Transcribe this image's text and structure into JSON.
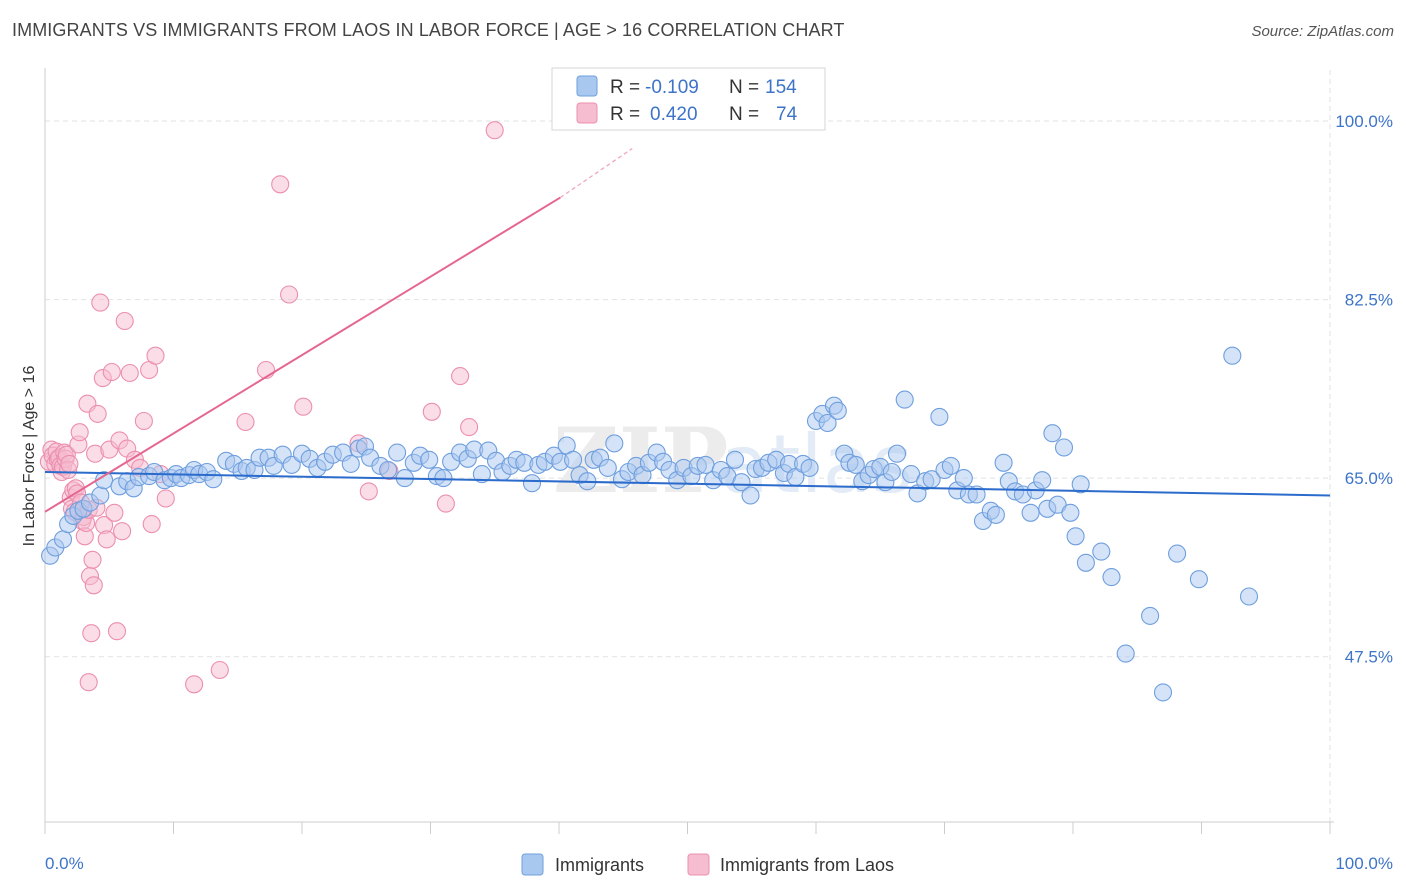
{
  "title": "IMMIGRANTS VS IMMIGRANTS FROM LAOS IN LABOR FORCE | AGE > 16 CORRELATION CHART",
  "source": "Source: ZipAtlas.com",
  "watermark": "ZIPatlas",
  "colors": {
    "blue_fill": "#a9c8ef",
    "blue_stroke": "#6f9fde",
    "blue_line": "#2b6bcc",
    "pink_fill": "#f6bcd0",
    "pink_stroke": "#ec8fae",
    "pink_line": "#e5678f",
    "tick_text": "#3d74c9",
    "grid": "#e2e2e2"
  },
  "legend": {
    "rows": [
      {
        "r_label": "R =",
        "r_value": "-0.109",
        "n_label": "N =",
        "n_value": "154"
      },
      {
        "r_label": "R =",
        "r_value": "0.420",
        "n_label": "N =",
        "n_value": "74"
      }
    ]
  },
  "chart_data": {
    "type": "scatter",
    "title": "IMMIGRANTS VS IMMIGRANTS FROM LAOS IN LABOR FORCE | AGE > 16 CORRELATION CHART",
    "xlabel": "",
    "ylabel": "In Labor Force | Age > 16",
    "xlim": [
      0,
      100
    ],
    "ylim": [
      31.3,
      105.0
    ],
    "x_tick_labels": [
      "0.0%",
      "100.0%"
    ],
    "y_ticks": [
      47.5,
      65.0,
      82.5,
      100.0
    ],
    "y_tick_labels": [
      "47.5%",
      "65.0%",
      "82.5%",
      "100.0%"
    ],
    "grid": true,
    "legend_position": "top-center",
    "series": [
      {
        "name": "Immigrants",
        "color": "#a9c8ef",
        "r": -0.109,
        "n": 154,
        "trend": {
          "x": [
            0,
            100
          ],
          "y": [
            65.6,
            63.3
          ]
        },
        "points": [
          [
            0.4,
            57.4
          ],
          [
            0.8,
            58.2
          ],
          [
            1.4,
            59.0
          ],
          [
            1.8,
            60.5
          ],
          [
            2.2,
            61.3
          ],
          [
            2.6,
            61.8
          ],
          [
            3.0,
            62.0
          ],
          [
            3.5,
            62.6
          ],
          [
            4.3,
            63.3
          ],
          [
            4.6,
            64.8
          ],
          [
            5.8,
            64.2
          ],
          [
            6.4,
            64.7
          ],
          [
            6.9,
            64.0
          ],
          [
            7.3,
            65.1
          ],
          [
            8.1,
            65.2
          ],
          [
            8.5,
            65.6
          ],
          [
            9.3,
            64.8
          ],
          [
            9.8,
            65.0
          ],
          [
            10.2,
            65.4
          ],
          [
            10.6,
            65.0
          ],
          [
            11.2,
            65.3
          ],
          [
            11.6,
            65.8
          ],
          [
            12.0,
            65.4
          ],
          [
            12.6,
            65.6
          ],
          [
            13.1,
            64.9
          ],
          [
            14.1,
            66.7
          ],
          [
            14.7,
            66.4
          ],
          [
            15.3,
            65.7
          ],
          [
            15.7,
            66.0
          ],
          [
            16.3,
            65.8
          ],
          [
            16.7,
            67.0
          ],
          [
            17.4,
            67.0
          ],
          [
            17.8,
            66.2
          ],
          [
            18.5,
            67.3
          ],
          [
            19.2,
            66.3
          ],
          [
            20.0,
            67.4
          ],
          [
            20.6,
            66.9
          ],
          [
            21.2,
            66.0
          ],
          [
            21.8,
            66.6
          ],
          [
            22.4,
            67.3
          ],
          [
            23.2,
            67.5
          ],
          [
            23.8,
            66.4
          ],
          [
            24.4,
            67.9
          ],
          [
            24.9,
            68.1
          ],
          [
            25.3,
            67.0
          ],
          [
            26.1,
            66.2
          ],
          [
            26.7,
            65.8
          ],
          [
            27.4,
            67.5
          ],
          [
            28.0,
            65.0
          ],
          [
            28.7,
            66.5
          ],
          [
            29.2,
            67.2
          ],
          [
            29.9,
            66.8
          ],
          [
            30.5,
            65.2
          ],
          [
            31.0,
            65.0
          ],
          [
            31.6,
            66.6
          ],
          [
            32.3,
            67.5
          ],
          [
            32.9,
            66.9
          ],
          [
            33.4,
            67.8
          ],
          [
            34.0,
            65.4
          ],
          [
            34.5,
            67.7
          ],
          [
            35.1,
            66.7
          ],
          [
            35.6,
            65.6
          ],
          [
            36.2,
            66.2
          ],
          [
            36.7,
            66.8
          ],
          [
            37.3,
            66.5
          ],
          [
            37.9,
            64.5
          ],
          [
            38.4,
            66.3
          ],
          [
            38.9,
            66.6
          ],
          [
            39.6,
            67.2
          ],
          [
            40.1,
            66.6
          ],
          [
            40.6,
            68.2
          ],
          [
            41.1,
            66.8
          ],
          [
            41.6,
            65.3
          ],
          [
            42.2,
            64.7
          ],
          [
            42.7,
            66.8
          ],
          [
            43.2,
            67.0
          ],
          [
            43.8,
            66.0
          ],
          [
            44.3,
            68.4
          ],
          [
            44.9,
            64.9
          ],
          [
            45.4,
            65.6
          ],
          [
            46.0,
            66.2
          ],
          [
            46.5,
            65.3
          ],
          [
            47.0,
            66.5
          ],
          [
            47.6,
            67.5
          ],
          [
            48.1,
            66.6
          ],
          [
            48.6,
            65.8
          ],
          [
            49.2,
            64.8
          ],
          [
            49.7,
            66.0
          ],
          [
            50.3,
            65.2
          ],
          [
            50.8,
            66.2
          ],
          [
            51.4,
            66.3
          ],
          [
            52.0,
            64.8
          ],
          [
            52.6,
            65.8
          ],
          [
            53.1,
            65.2
          ],
          [
            53.7,
            66.8
          ],
          [
            54.2,
            64.6
          ],
          [
            54.9,
            63.3
          ],
          [
            55.3,
            65.9
          ],
          [
            55.8,
            66.0
          ],
          [
            56.3,
            66.5
          ],
          [
            56.9,
            66.8
          ],
          [
            57.5,
            65.5
          ],
          [
            57.9,
            66.4
          ],
          [
            58.4,
            65.1
          ],
          [
            59.0,
            66.4
          ],
          [
            59.5,
            66.0
          ],
          [
            60.0,
            70.6
          ],
          [
            60.5,
            71.3
          ],
          [
            60.9,
            70.4
          ],
          [
            61.4,
            72.1
          ],
          [
            61.7,
            71.6
          ],
          [
            62.2,
            67.4
          ],
          [
            62.6,
            66.5
          ],
          [
            63.1,
            66.3
          ],
          [
            63.6,
            64.7
          ],
          [
            64.1,
            65.3
          ],
          [
            64.5,
            65.9
          ],
          [
            65.0,
            66.1
          ],
          [
            65.4,
            64.6
          ],
          [
            65.9,
            65.6
          ],
          [
            66.3,
            67.4
          ],
          [
            66.9,
            72.7
          ],
          [
            67.4,
            65.4
          ],
          [
            67.9,
            63.5
          ],
          [
            68.5,
            64.7
          ],
          [
            69.0,
            64.9
          ],
          [
            69.6,
            71.0
          ],
          [
            70.0,
            65.8
          ],
          [
            70.5,
            66.2
          ],
          [
            71.0,
            63.8
          ],
          [
            71.5,
            65.0
          ],
          [
            71.9,
            63.4
          ],
          [
            72.5,
            63.4
          ],
          [
            73.0,
            60.8
          ],
          [
            73.6,
            61.8
          ],
          [
            74.0,
            61.4
          ],
          [
            74.6,
            66.5
          ],
          [
            75.0,
            64.7
          ],
          [
            75.5,
            63.7
          ],
          [
            76.1,
            63.4
          ],
          [
            76.7,
            61.6
          ],
          [
            77.1,
            63.8
          ],
          [
            77.6,
            64.8
          ],
          [
            78.0,
            62.0
          ],
          [
            78.4,
            69.4
          ],
          [
            78.8,
            62.4
          ],
          [
            79.3,
            68.0
          ],
          [
            79.8,
            61.6
          ],
          [
            80.2,
            59.3
          ],
          [
            80.6,
            64.4
          ],
          [
            81.0,
            56.7
          ],
          [
            82.2,
            57.8
          ],
          [
            83.0,
            55.3
          ],
          [
            84.1,
            47.8
          ],
          [
            86.0,
            51.5
          ],
          [
            87.0,
            44.0
          ],
          [
            88.1,
            57.6
          ],
          [
            89.8,
            55.1
          ],
          [
            92.4,
            77.0
          ],
          [
            93.7,
            53.4
          ]
        ]
      },
      {
        "name": "Immigrants from Laos",
        "color": "#f6bcd0",
        "r": 0.42,
        "n": 74,
        "trend": {
          "x": [
            0,
            40.1
          ],
          "y": [
            61.7,
            92.5
          ]
        },
        "trend_dashed": {
          "x": [
            40.1,
            45.7
          ],
          "y": [
            92.5,
            97.3
          ]
        },
        "points": [
          [
            0.3,
            66.6
          ],
          [
            0.5,
            67.8
          ],
          [
            0.6,
            67.2
          ],
          [
            0.8,
            66.4
          ],
          [
            0.9,
            67.6
          ],
          [
            1.0,
            66.8
          ],
          [
            1.1,
            67.0
          ],
          [
            1.2,
            66.2
          ],
          [
            1.3,
            65.6
          ],
          [
            1.4,
            66.1
          ],
          [
            1.5,
            67.5
          ],
          [
            1.6,
            66.9
          ],
          [
            1.7,
            67.3
          ],
          [
            1.8,
            65.8
          ],
          [
            1.9,
            66.4
          ],
          [
            2.0,
            63.1
          ],
          [
            2.1,
            62.0
          ],
          [
            2.2,
            63.8
          ],
          [
            2.3,
            61.7
          ],
          [
            2.4,
            64.0
          ],
          [
            2.5,
            63.5
          ],
          [
            2.6,
            68.3
          ],
          [
            2.7,
            69.5
          ],
          [
            2.8,
            62.6
          ],
          [
            2.9,
            60.8
          ],
          [
            3.0,
            61.2
          ],
          [
            3.1,
            59.3
          ],
          [
            3.2,
            60.6
          ],
          [
            3.3,
            72.3
          ],
          [
            3.4,
            61.9
          ],
          [
            3.5,
            55.4
          ],
          [
            3.6,
            49.8
          ],
          [
            3.7,
            57.0
          ],
          [
            3.8,
            54.5
          ],
          [
            3.9,
            67.4
          ],
          [
            4.0,
            62.1
          ],
          [
            4.1,
            71.3
          ],
          [
            4.3,
            82.2
          ],
          [
            4.5,
            74.8
          ],
          [
            4.6,
            60.4
          ],
          [
            4.8,
            59.0
          ],
          [
            5.0,
            67.8
          ],
          [
            5.2,
            75.4
          ],
          [
            5.4,
            61.6
          ],
          [
            5.6,
            50.0
          ],
          [
            5.8,
            68.7
          ],
          [
            6.0,
            59.8
          ],
          [
            6.2,
            80.4
          ],
          [
            6.4,
            67.9
          ],
          [
            6.6,
            75.3
          ],
          [
            7.0,
            66.8
          ],
          [
            7.4,
            66.0
          ],
          [
            7.7,
            70.6
          ],
          [
            8.1,
            75.6
          ],
          [
            8.3,
            60.5
          ],
          [
            8.6,
            77.0
          ],
          [
            9.0,
            65.4
          ],
          [
            9.4,
            63.0
          ],
          [
            11.6,
            44.8
          ],
          [
            13.6,
            46.2
          ],
          [
            15.6,
            70.5
          ],
          [
            17.2,
            75.6
          ],
          [
            18.3,
            93.8
          ],
          [
            19.0,
            83.0
          ],
          [
            20.1,
            72.0
          ],
          [
            24.4,
            68.4
          ],
          [
            25.2,
            63.7
          ],
          [
            26.8,
            65.7
          ],
          [
            30.1,
            71.5
          ],
          [
            31.2,
            62.5
          ],
          [
            32.3,
            75.0
          ],
          [
            33.0,
            70.0
          ],
          [
            35.0,
            99.1
          ],
          [
            3.4,
            45.0
          ]
        ]
      }
    ]
  }
}
